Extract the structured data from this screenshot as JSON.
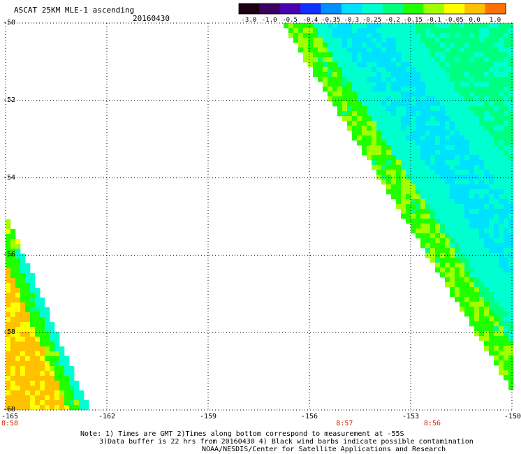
{
  "title": "ASCAT 25KM MLE-1 ascending",
  "date": "20160430",
  "colorbar": {
    "labels": [
      "-3.0",
      "-1.0",
      "-0.5",
      "-0.4",
      "-0.35",
      "-0.3",
      "-0.25",
      "-0.2",
      "-0.15",
      "-0.1",
      "-0.05",
      "0.0",
      "1.0"
    ],
    "colors": [
      "#1a0010",
      "#3a0060",
      "#4b00b0",
      "#1030ff",
      "#0090ff",
      "#00e0ff",
      "#00ffd0",
      "#00ff80",
      "#20ff00",
      "#a0ff00",
      "#ffff00",
      "#ffc000",
      "#ff7000",
      "#ff1000"
    ]
  },
  "map": {
    "lat_labels": [
      "-50",
      "-52",
      "-54",
      "-56",
      "-58",
      "-60"
    ],
    "lon_labels": [
      "-165",
      "-162",
      "-159",
      "-156",
      "-153",
      "-150"
    ],
    "lat_range": [
      -60,
      -50
    ],
    "lon_range": [
      -165,
      -150
    ],
    "time_labels": [
      {
        "text": "8:58",
        "lon": -165
      },
      {
        "text": "8:57",
        "lon": -155
      },
      {
        "text": "8:56",
        "lon": -152.4
      }
    ]
  },
  "notes": [
    "Note: 1) Times are GMT 2)Times along bottom correspond to measurement at -55S",
    "3)Data buffer is 22 hrs from 20160430 4) Black wind barbs indicate possible contamination",
    "NOAA/NESDIS/Center for Satellite Applications and Research"
  ]
}
